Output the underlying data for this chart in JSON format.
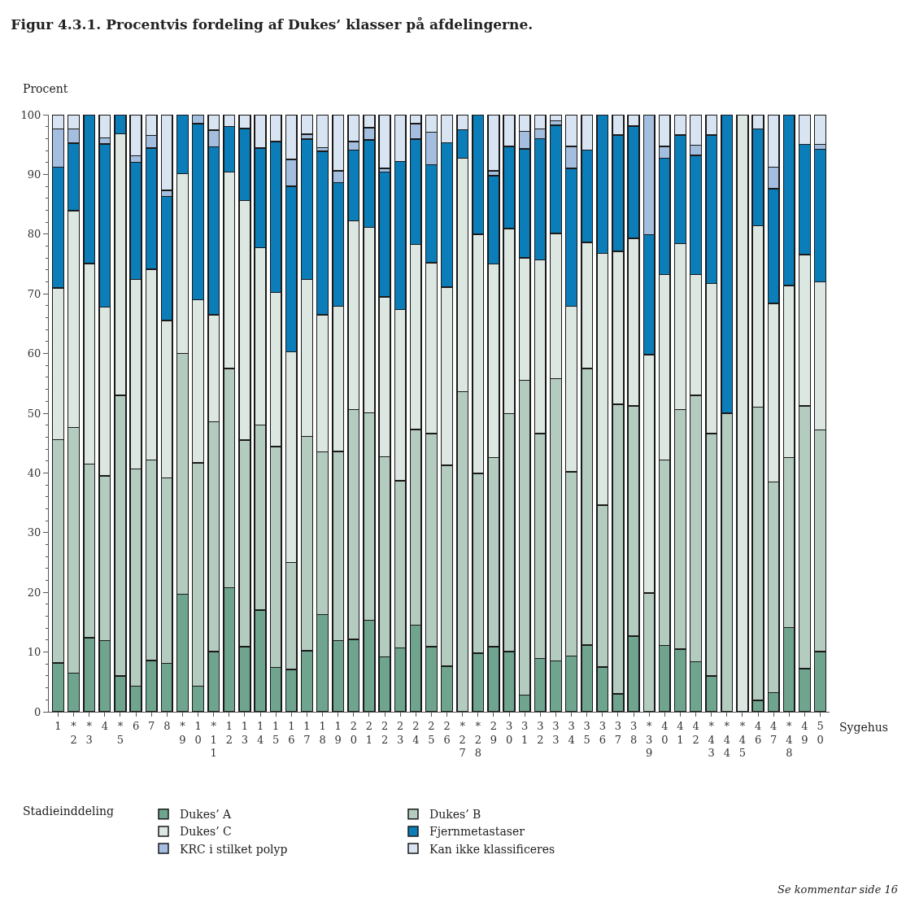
{
  "chart_data": {
    "type": "bar",
    "stacked": true,
    "title": "Figur 4.3.1. Procentvis fordeling af Dukes’ klasser på afdelingerne.",
    "ylabel": "Procent",
    "xlabel": "Sygehus",
    "legend_title": "Stadieinddeling",
    "annotations": [
      "Se kommentar side 16"
    ],
    "categories": [
      "1",
      "*\n2",
      "*\n3",
      "4",
      "*\n5",
      "6",
      "7",
      "8",
      "*\n9",
      "1\n0",
      "*\n1\n1",
      "1\n2",
      "1\n3",
      "1\n4",
      "1\n5",
      "1\n6",
      "1\n7",
      "1\n8",
      "1\n9",
      "2\n0",
      "2\n1",
      "2\n2",
      "2\n3",
      "2\n4",
      "2\n5",
      "2\n6",
      "*\n2\n7",
      "*\n2\n8",
      "2\n9",
      "3\n0",
      "3\n1",
      "3\n2",
      "3\n3",
      "3\n4",
      "3\n5",
      "3\n6",
      "3\n7",
      "3\n8",
      "*\n3\n9",
      "4\n0",
      "4\n1",
      "4\n2",
      "*\n4\n3",
      "*\n4\n4",
      "*\n4\n5",
      "4\n6",
      "4\n7",
      "*\n4\n8",
      "4\n9",
      "5\n0"
    ],
    "ylim": [
      0,
      100
    ],
    "yticks": [
      0,
      10,
      20,
      30,
      40,
      50,
      60,
      70,
      80,
      90,
      100
    ],
    "legend": "bottom",
    "series": [
      {
        "name": "Dukes’ A",
        "color": "#6fa58f",
        "values": [
          8.2,
          6.5,
          12.4,
          11.9,
          6.0,
          4.3,
          8.6,
          8.1,
          19.7,
          4.3,
          10.1,
          20.8,
          10.9,
          17.0,
          7.4,
          7.1,
          10.2,
          16.3,
          11.9,
          12.1,
          15.3,
          9.2,
          10.7,
          14.5,
          10.9,
          7.6,
          0,
          9.8,
          10.9,
          10.1,
          2.8,
          8.9,
          8.5,
          9.3,
          11.2,
          7.5,
          3.0,
          12.7,
          0,
          11.1,
          10.5,
          8.4,
          6.0,
          0,
          0,
          1.9,
          3.2,
          14.1,
          7.2,
          10.1
        ]
      },
      {
        "name": "Dukes’ B",
        "color": "#b4cbbf",
        "values": [
          37.4,
          41.1,
          29.1,
          27.6,
          47.0,
          36.4,
          33.6,
          31.1,
          40.3,
          37.4,
          38.5,
          36.7,
          34.6,
          31.0,
          37.0,
          17.9,
          35.9,
          27.2,
          31.7,
          38.5,
          34.8,
          33.5,
          28.0,
          32.8,
          35.7,
          33.7,
          53.6,
          30.1,
          31.7,
          39.8,
          52.7,
          37.7,
          47.3,
          30.9,
          46.3,
          27.1,
          48.5,
          38.5,
          19.9,
          31.1,
          40.1,
          44.6,
          40.6,
          50.0,
          0,
          49.1,
          35.3,
          28.5,
          44.0,
          37.1
        ]
      },
      {
        "name": "Dukes’ C",
        "color": "#dde7e2",
        "values": [
          25.4,
          36.3,
          33.6,
          28.3,
          43.8,
          31.7,
          31.9,
          26.3,
          30.1,
          27.3,
          17.9,
          32.9,
          40.1,
          29.7,
          25.8,
          35.3,
          26.3,
          23.0,
          24.3,
          31.6,
          31.0,
          26.8,
          28.7,
          31.0,
          28.6,
          29.8,
          39.1,
          40.1,
          32.4,
          31.0,
          20.5,
          29.1,
          24.3,
          27.7,
          21.1,
          42.2,
          25.6,
          28.1,
          39.9,
          31.0,
          27.8,
          20.2,
          25.1,
          0,
          100,
          30.4,
          29.9,
          28.8,
          25.4,
          24.8
        ]
      },
      {
        "name": "Fjernmetastaser",
        "color": "#0b7db8",
        "values": [
          20.2,
          11.3,
          24.9,
          27.3,
          3.2,
          19.6,
          20.3,
          20.8,
          9.9,
          29.5,
          28.1,
          7.6,
          12.1,
          16.7,
          25.3,
          27.7,
          23.5,
          27.4,
          20.7,
          11.9,
          14.7,
          20.9,
          24.8,
          17.6,
          16.4,
          24.2,
          4.8,
          20.0,
          14.8,
          13.8,
          18.3,
          20.3,
          18.1,
          23.1,
          15.5,
          23.2,
          19.5,
          18.8,
          20.1,
          19.5,
          18.2,
          20.0,
          24.9,
          50.0,
          0,
          16.2,
          19.2,
          28.6,
          18.4,
          22.2
        ]
      },
      {
        "name": "KRC i stilket polyp",
        "color": "#a3bedf",
        "values": [
          6.4,
          2.4,
          0,
          1.0,
          0,
          1.1,
          2.1,
          1.0,
          0,
          1.5,
          2.8,
          0,
          0,
          0,
          0,
          4.5,
          0.8,
          0.6,
          2.0,
          1.4,
          2.0,
          0.6,
          0,
          2.6,
          5.5,
          0,
          0,
          0,
          0.8,
          0,
          2.9,
          1.6,
          0.8,
          3.7,
          0,
          0,
          0,
          0,
          20.1,
          2.0,
          0,
          1.7,
          0,
          0,
          0,
          0,
          3.6,
          0,
          0,
          0.8
        ]
      },
      {
        "name": "Kan ikke klassificeres",
        "color": "#d8e4f2",
        "values": [
          2.4,
          2.4,
          0,
          3.9,
          0,
          6.9,
          3.5,
          12.7,
          0,
          0,
          2.6,
          2.0,
          2.3,
          5.6,
          4.5,
          7.5,
          3.3,
          5.5,
          9.4,
          4.5,
          2.2,
          9.0,
          7.8,
          1.5,
          2.9,
          4.7,
          2.5,
          0,
          9.4,
          5.3,
          2.8,
          2.4,
          1.0,
          5.3,
          5.9,
          0,
          3.4,
          1.9,
          0,
          5.3,
          3.4,
          5.1,
          3.4,
          0,
          0,
          2.4,
          8.8,
          0,
          5.0,
          5.0
        ]
      }
    ]
  }
}
